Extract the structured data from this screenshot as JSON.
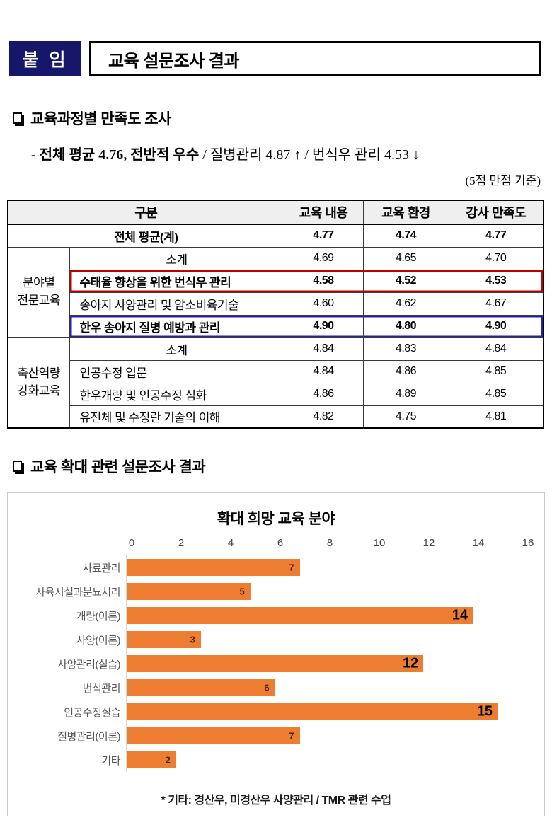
{
  "colors": {
    "badge_navy": "#16166B",
    "highlight_red": "#C00000",
    "highlight_blue": "#2121B0",
    "bar_orange": "#ED7D31",
    "table_header_gray": "#EFEFEF"
  },
  "header": {
    "badge": "붙 임",
    "title": "교육 설문조사 결과"
  },
  "section1": {
    "heading": "교육과정별 만족도 조사",
    "summary_bold": "- 전체 평균 4.76, 전반적 우수",
    "summary_rest": " / 질병관리 4.87 ↑ / 번식우 관리 4.53 ↓",
    "scale_note": "(5점 만점 기준)",
    "table": {
      "col_headers": {
        "category": "구분",
        "c1": "교육 내용",
        "c2": "교육 환경",
        "c3": "강사 만족도"
      },
      "total": {
        "label": "전체 평균(계)",
        "values": [
          "4.77",
          "4.74",
          "4.77"
        ]
      },
      "groups": [
        {
          "lines": [
            "분야별",
            "전문교육"
          ],
          "rows": [
            {
              "label": "소계",
              "values": [
                "4.69",
                "4.65",
                "4.70"
              ]
            },
            {
              "label": "수태율 향상을 위한 번식우 관리",
              "values": [
                "4.58",
                "4.52",
                "4.53"
              ]
            },
            {
              "label": "송아지 사양관리 및 암소비육기술",
              "values": [
                "4.60",
                "4.62",
                "4.67"
              ]
            },
            {
              "label": "한우 송아지 질병 예방과 관리",
              "values": [
                "4.90",
                "4.80",
                "4.90"
              ]
            }
          ]
        },
        {
          "lines": [
            "축산역량",
            "강화교육"
          ],
          "rows": [
            {
              "label": "소계",
              "values": [
                "4.84",
                "4.83",
                "4.84"
              ]
            },
            {
              "label": "인공수정 입문",
              "values": [
                "4.84",
                "4.86",
                "4.85"
              ]
            },
            {
              "label": "한우개량 및 인공수정 심화",
              "values": [
                "4.86",
                "4.89",
                "4.85"
              ]
            },
            {
              "label": "유전체 및 수정란 기술의 이해",
              "values": [
                "4.82",
                "4.75",
                "4.81"
              ]
            }
          ]
        }
      ]
    }
  },
  "section2": {
    "heading": "교육 확대 관련 설문조사 결과"
  },
  "chart_data": {
    "type": "bar",
    "orientation": "horizontal",
    "title": "확대 희망 교육 분야",
    "categories": [
      "사료관리",
      "사육시설과분뇨처리",
      "개량(이론)",
      "사양(이론)",
      "사양관리(실습)",
      "번식관리",
      "인공수정실습",
      "질병관리(이론)",
      "기타"
    ],
    "values": [
      7,
      5,
      14,
      3,
      12,
      6,
      15,
      7,
      2
    ],
    "xlim": [
      0,
      16
    ],
    "xticks": [
      0,
      2,
      4,
      6,
      8,
      10,
      12,
      14,
      16
    ],
    "bar_color": "#ED7D31",
    "grid": false,
    "legend": false,
    "footnote": "* 기타: 경산우, 미경산우 사양관리 / TMR 관련 수업"
  }
}
